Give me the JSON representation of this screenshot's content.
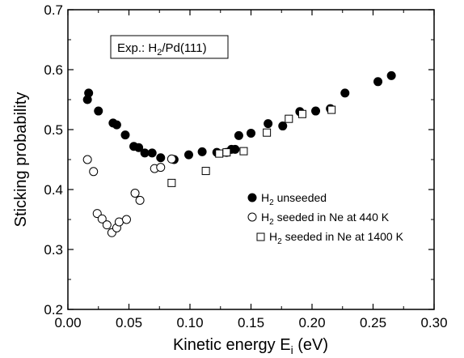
{
  "chart_data": {
    "type": "scatter",
    "title": "",
    "xlabel": "Kinetic energy E_i (eV)",
    "ylabel": "Sticking probability",
    "xlim": [
      0.0,
      0.3
    ],
    "ylim": [
      0.2,
      0.7
    ],
    "x_ticks": [
      "0.00",
      "0.05",
      "0.10",
      "0.15",
      "0.20",
      "0.25",
      "0.30"
    ],
    "y_ticks": [
      "0.2",
      "0.3",
      "0.4",
      "0.5",
      "0.6",
      "0.7"
    ],
    "annotation": "Exp.: H2/Pd(111)",
    "legend_position": "right",
    "grid": false,
    "series": [
      {
        "name": "H2 unseeded",
        "marker": "filled-circle",
        "color": "#000000",
        "points": [
          [
            0.016,
            0.55
          ],
          [
            0.017,
            0.561
          ],
          [
            0.025,
            0.531
          ],
          [
            0.037,
            0.511
          ],
          [
            0.04,
            0.508
          ],
          [
            0.047,
            0.491
          ],
          [
            0.054,
            0.472
          ],
          [
            0.058,
            0.47
          ],
          [
            0.063,
            0.461
          ],
          [
            0.069,
            0.461
          ],
          [
            0.076,
            0.453
          ],
          [
            0.087,
            0.45
          ],
          [
            0.099,
            0.458
          ],
          [
            0.11,
            0.463
          ],
          [
            0.122,
            0.462
          ],
          [
            0.13,
            0.462
          ],
          [
            0.134,
            0.467
          ],
          [
            0.137,
            0.467
          ],
          [
            0.14,
            0.49
          ],
          [
            0.15,
            0.494
          ],
          [
            0.164,
            0.51
          ],
          [
            0.176,
            0.506
          ],
          [
            0.19,
            0.53
          ],
          [
            0.203,
            0.531
          ],
          [
            0.215,
            0.535
          ],
          [
            0.227,
            0.561
          ],
          [
            0.254,
            0.58
          ],
          [
            0.265,
            0.59
          ]
        ]
      },
      {
        "name": "H2 seeded in Ne at 440 K",
        "marker": "open-circle",
        "color": "#000000",
        "points": [
          [
            0.016,
            0.45
          ],
          [
            0.021,
            0.43
          ],
          [
            0.024,
            0.36
          ],
          [
            0.028,
            0.351
          ],
          [
            0.032,
            0.341
          ],
          [
            0.036,
            0.328
          ],
          [
            0.04,
            0.336
          ],
          [
            0.042,
            0.346
          ],
          [
            0.048,
            0.35
          ],
          [
            0.055,
            0.394
          ],
          [
            0.059,
            0.382
          ],
          [
            0.071,
            0.435
          ],
          [
            0.076,
            0.437
          ],
          [
            0.085,
            0.451
          ]
        ]
      },
      {
        "name": "H2 seeded in Ne at 1400 K",
        "marker": "open-square",
        "color": "#000000",
        "points": [
          [
            0.085,
            0.411
          ],
          [
            0.113,
            0.431
          ],
          [
            0.124,
            0.46
          ],
          [
            0.13,
            0.462
          ],
          [
            0.144,
            0.464
          ],
          [
            0.163,
            0.495
          ],
          [
            0.181,
            0.518
          ],
          [
            0.192,
            0.526
          ],
          [
            0.216,
            0.533
          ]
        ]
      }
    ]
  },
  "axes": {
    "xlabel_main": "Kinetic energy E",
    "xlabel_sub": "i",
    "xlabel_unit": " (eV)",
    "ylabel": "Sticking probability"
  },
  "annotation": {
    "pre": "Exp.: H",
    "sub": "2",
    "post": "/Pd(111)"
  },
  "legend": [
    {
      "pre": "H",
      "sub": "2",
      "post": " unseeded"
    },
    {
      "pre": "H",
      "sub": "2",
      "post": " seeded in Ne at 440 K"
    },
    {
      "pre": "H",
      "sub": "2",
      "post": " seeded in Ne at 1400 K"
    }
  ]
}
